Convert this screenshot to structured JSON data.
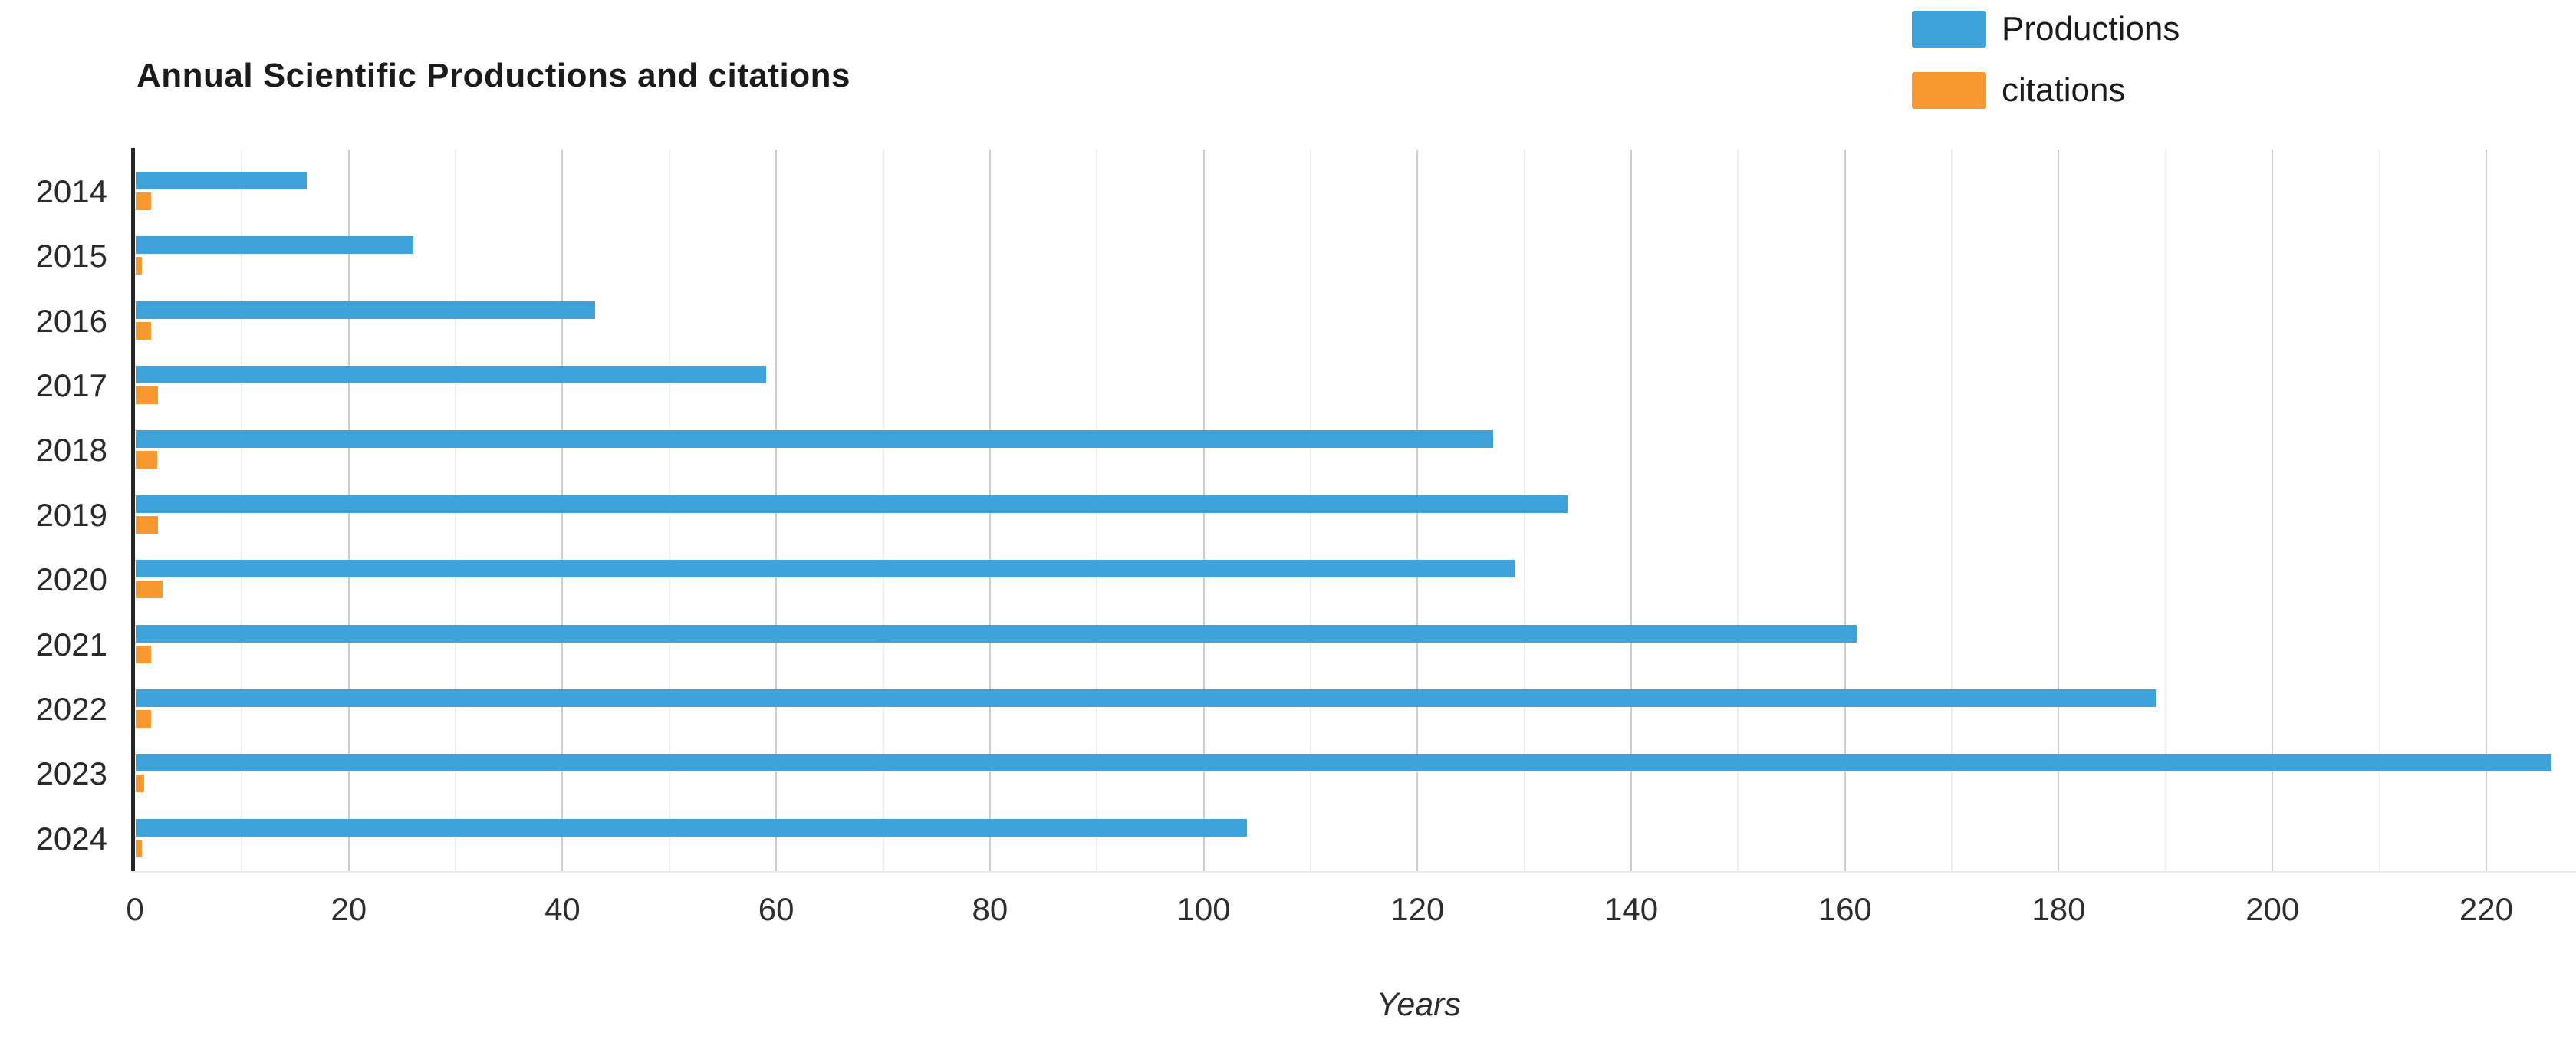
{
  "header": {
    "title": "Annual Scientific Productions and citations"
  },
  "legend": {
    "items": [
      {
        "label": "Productions",
        "color": "#3EA2DB"
      },
      {
        "label": "citations",
        "color": "#F8992F"
      }
    ]
  },
  "axis": {
    "xlabel": "Years",
    "x_tick_labels": [
      "0",
      "20",
      "40",
      "60",
      "80",
      "100",
      "120",
      "140",
      "160",
      "180",
      "200",
      "220"
    ]
  },
  "chart_data": {
    "type": "bar",
    "orientation": "horizontal",
    "title": "Annual Scientific Productions and citations",
    "xlabel": "Years",
    "ylabel": "",
    "categories": [
      "2014",
      "2015",
      "2016",
      "2017",
      "2018",
      "2019",
      "2020",
      "2021",
      "2022",
      "2023",
      "2024"
    ],
    "series": [
      {
        "name": "Productions",
        "color": "#3EA2DB",
        "values": [
          16,
          26,
          43,
          59,
          127,
          134,
          129,
          161,
          189,
          226,
          104
        ]
      },
      {
        "name": "citations",
        "color": "#F8992F",
        "values": [
          1.4,
          0.6,
          1.4,
          2.1,
          2.0,
          2.1,
          2.5,
          1.4,
          1.4,
          0.8,
          0.6
        ]
      }
    ],
    "xlim": [
      0,
      228.4
    ],
    "x_ticks": [
      0,
      20,
      40,
      60,
      80,
      100,
      120,
      140,
      160,
      180,
      200,
      220
    ],
    "minor_grid_step": 10,
    "grid": true,
    "legend_position": "top-right"
  }
}
